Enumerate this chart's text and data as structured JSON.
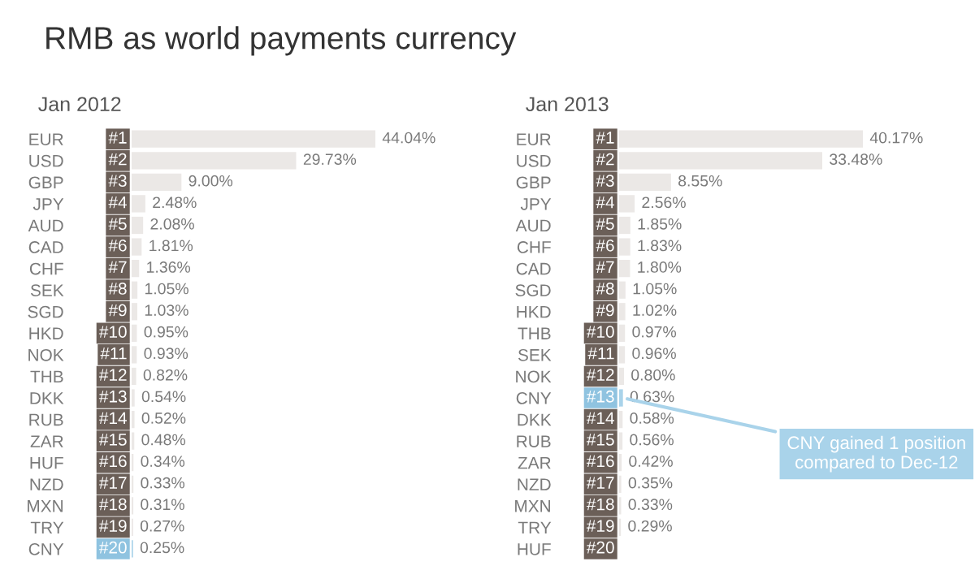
{
  "chart_data": [
    {
      "type": "bar",
      "orientation": "horizontal",
      "title": "RMB as world payments currency",
      "subtitle": "Jan 2012",
      "categories": [
        "EUR",
        "USD",
        "GBP",
        "JPY",
        "AUD",
        "CAD",
        "CHF",
        "SEK",
        "SGD",
        "HKD",
        "NOK",
        "THB",
        "DKK",
        "RUB",
        "ZAR",
        "HUF",
        "NZD",
        "MXN",
        "TRY",
        "CNY"
      ],
      "values": [
        44.04,
        29.73,
        9.0,
        2.48,
        2.08,
        1.81,
        1.36,
        1.05,
        1.03,
        0.95,
        0.93,
        0.82,
        0.54,
        0.52,
        0.48,
        0.34,
        0.33,
        0.31,
        0.27,
        0.25
      ],
      "value_labels": [
        "44.04%",
        "29.73%",
        "9.00%",
        "2.48%",
        "2.08%",
        "1.81%",
        "1.36%",
        "1.05%",
        "1.03%",
        "0.95%",
        "0.93%",
        "0.82%",
        "0.54%",
        "0.52%",
        "0.48%",
        "0.34%",
        "0.33%",
        "0.31%",
        "0.27%",
        "0.25%"
      ],
      "colors": [
        "#ebe8e6",
        "#ebe8e6",
        "#ebe8e6",
        "#ebe8e6",
        "#ebe8e6",
        "#ebe8e6",
        "#ebe8e6",
        "#ebe8e6",
        "#ebe8e6",
        "#ebe8e6",
        "#ebe8e6",
        "#ebe8e6",
        "#ebe8e6",
        "#ebe8e6",
        "#ebe8e6",
        "#ebe8e6",
        "#ebe8e6",
        "#ebe8e6",
        "#ebe8e6",
        "#a9d3ea"
      ],
      "annotations": [
        {
          "text": "#1",
          "y": "EUR"
        },
        {
          "text": "#2",
          "y": "USD"
        },
        {
          "text": "#3",
          "y": "GBP"
        },
        {
          "text": "#4",
          "y": "JPY"
        },
        {
          "text": "#5",
          "y": "AUD"
        },
        {
          "text": "#6",
          "y": "CAD"
        },
        {
          "text": "#7",
          "y": "CHF"
        },
        {
          "text": "#8",
          "y": "SEK"
        },
        {
          "text": "#9",
          "y": "SGD"
        },
        {
          "text": "#10",
          "y": "HKD"
        },
        {
          "text": "#11",
          "y": "NOK"
        },
        {
          "text": "#12",
          "y": "THB"
        },
        {
          "text": "#13",
          "y": "DKK"
        },
        {
          "text": "#14",
          "y": "RUB"
        },
        {
          "text": "#15",
          "y": "ZAR"
        },
        {
          "text": "#16",
          "y": "HUF"
        },
        {
          "text": "#17",
          "y": "NZD"
        },
        {
          "text": "#18",
          "y": "MXN"
        },
        {
          "text": "#19",
          "y": "TRY"
        },
        {
          "text": "#20",
          "y": "CNY"
        }
      ]
    },
    {
      "type": "bar",
      "orientation": "horizontal",
      "subtitle": "Jan 2013",
      "categories": [
        "EUR",
        "USD",
        "GBP",
        "JPY",
        "AUD",
        "CHF",
        "CAD",
        "SGD",
        "HKD",
        "THB",
        "SEK",
        "NOK",
        "CNY",
        "DKK",
        "RUB",
        "ZAR",
        "NZD",
        "MXN",
        "TRY",
        "HUF"
      ],
      "values": [
        40.17,
        33.48,
        8.55,
        2.56,
        1.85,
        1.83,
        1.8,
        1.05,
        1.02,
        0.97,
        0.96,
        0.8,
        0.63,
        0.58,
        0.56,
        0.42,
        0.35,
        0.33,
        0.29,
        null
      ],
      "value_labels": [
        "40.17%",
        "33.48%",
        "8.55%",
        "2.56%",
        "1.85%",
        "1.83%",
        "1.80%",
        "1.05%",
        "1.02%",
        "0.97%",
        "0.96%",
        "0.80%",
        "0.63%",
        "0.58%",
        "0.56%",
        "0.42%",
        "0.35%",
        "0.33%",
        "0.29%",
        null
      ],
      "colors": [
        "#ebe8e6",
        "#ebe8e6",
        "#ebe8e6",
        "#ebe8e6",
        "#ebe8e6",
        "#ebe8e6",
        "#ebe8e6",
        "#ebe8e6",
        "#ebe8e6",
        "#ebe8e6",
        "#ebe8e6",
        "#ebe8e6",
        "#a9d3ea",
        "#ebe8e6",
        "#ebe8e6",
        "#ebe8e6",
        "#ebe8e6",
        "#ebe8e6",
        "#ebe8e6",
        "#ebe8e6"
      ],
      "annotations": [
        {
          "text": "#1",
          "y": "EUR"
        },
        {
          "text": "#2",
          "y": "USD"
        },
        {
          "text": "#3",
          "y": "GBP"
        },
        {
          "text": "#4",
          "y": "JPY"
        },
        {
          "text": "#5",
          "y": "AUD"
        },
        {
          "text": "#6",
          "y": "CHF"
        },
        {
          "text": "#7",
          "y": "CAD"
        },
        {
          "text": "#8",
          "y": "SGD"
        },
        {
          "text": "#9",
          "y": "HKD"
        },
        {
          "text": "#10",
          "y": "THB"
        },
        {
          "text": "#11",
          "y": "SEK"
        },
        {
          "text": "#12",
          "y": "NOK"
        },
        {
          "text": "#13",
          "y": "CNY"
        },
        {
          "text": "#14",
          "y": "DKK"
        },
        {
          "text": "#15",
          "y": "RUB"
        },
        {
          "text": "#16",
          "y": "ZAR"
        },
        {
          "text": "#17",
          "y": "NZD"
        },
        {
          "text": "#18",
          "y": "MXN"
        },
        {
          "text": "#19",
          "y": "TRY"
        },
        {
          "text": "#20",
          "y": "HUF"
        },
        {
          "text": "CNY gained 1 position compared to Dec-12",
          "x": 0.63,
          "y": "CNY"
        }
      ]
    }
  ]
}
